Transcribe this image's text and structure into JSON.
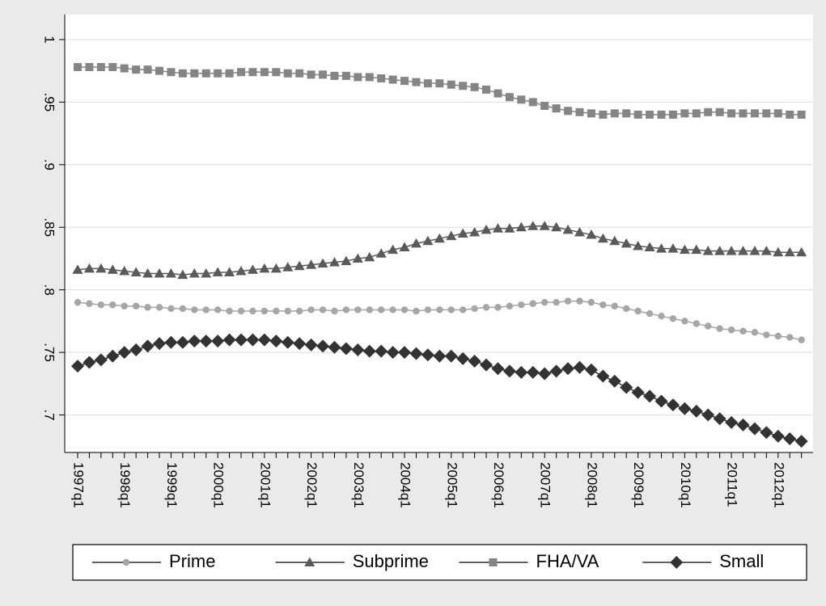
{
  "chart_data": {
    "type": "line",
    "categories": [
      "1997q1",
      null,
      null,
      null,
      "1998q1",
      null,
      null,
      null,
      "1999q1",
      null,
      null,
      null,
      "2000q1",
      null,
      null,
      null,
      "2001q1",
      null,
      null,
      null,
      "2002q1",
      null,
      null,
      null,
      "2003q1",
      null,
      null,
      null,
      "2004q1",
      null,
      null,
      null,
      "2005q1",
      null,
      null,
      null,
      "2006q1",
      null,
      null,
      null,
      "2007q1",
      null,
      null,
      null,
      "2008q1",
      null,
      null,
      null,
      "2009q1",
      null,
      null,
      null,
      "2010q1",
      null,
      null,
      null,
      "2011q1",
      null,
      null,
      null,
      "2012q1",
      null,
      null
    ],
    "ylim": [
      0.67,
      1.02
    ],
    "yticks": [
      {
        "value": 0.7,
        "label": ".7"
      },
      {
        "value": 0.75,
        "label": ".75"
      },
      {
        "value": 0.8,
        "label": ".8"
      },
      {
        "value": 0.85,
        "label": ".85"
      },
      {
        "value": 0.9,
        "label": ".9"
      },
      {
        "value": 0.95,
        "label": ".95"
      },
      1
    ],
    "grid": true,
    "series": [
      {
        "name": "Prime",
        "color": "#a6a6a6",
        "marker": "circle",
        "values": [
          0.79,
          0.789,
          0.788,
          0.788,
          0.787,
          0.787,
          0.786,
          0.786,
          0.785,
          0.785,
          0.784,
          0.784,
          0.784,
          0.783,
          0.783,
          0.783,
          0.783,
          0.783,
          0.783,
          0.783,
          0.784,
          0.784,
          0.783,
          0.784,
          0.784,
          0.784,
          0.784,
          0.784,
          0.784,
          0.783,
          0.784,
          0.784,
          0.784,
          0.784,
          0.785,
          0.786,
          0.786,
          0.787,
          0.788,
          0.789,
          0.79,
          0.79,
          0.791,
          0.791,
          0.79,
          0.788,
          0.787,
          0.785,
          0.783,
          0.781,
          0.779,
          0.777,
          0.775,
          0.773,
          0.771,
          0.769,
          0.768,
          0.767,
          0.766,
          0.764,
          0.763,
          0.762,
          0.76
        ]
      },
      {
        "name": "Subprime",
        "color": "#5a5a5a",
        "marker": "triangle",
        "values": [
          0.816,
          0.817,
          0.817,
          0.816,
          0.815,
          0.814,
          0.813,
          0.813,
          0.813,
          0.812,
          0.813,
          0.813,
          0.814,
          0.814,
          0.815,
          0.816,
          0.817,
          0.817,
          0.818,
          0.819,
          0.82,
          0.821,
          0.822,
          0.823,
          0.825,
          0.826,
          0.829,
          0.832,
          0.834,
          0.837,
          0.839,
          0.841,
          0.843,
          0.845,
          0.846,
          0.848,
          0.849,
          0.849,
          0.85,
          0.851,
          0.851,
          0.85,
          0.848,
          0.846,
          0.844,
          0.841,
          0.839,
          0.837,
          0.835,
          0.834,
          0.833,
          0.833,
          0.832,
          0.832,
          0.831,
          0.831,
          0.831,
          0.831,
          0.831,
          0.831,
          0.83,
          0.83,
          0.83
        ]
      },
      {
        "name": "FHA/VA",
        "color": "#858585",
        "marker": "square",
        "values": [
          0.978,
          0.978,
          0.978,
          0.978,
          0.977,
          0.976,
          0.976,
          0.975,
          0.974,
          0.973,
          0.973,
          0.973,
          0.973,
          0.973,
          0.974,
          0.974,
          0.974,
          0.974,
          0.973,
          0.973,
          0.972,
          0.972,
          0.971,
          0.971,
          0.97,
          0.97,
          0.969,
          0.968,
          0.967,
          0.966,
          0.965,
          0.965,
          0.964,
          0.963,
          0.962,
          0.96,
          0.957,
          0.954,
          0.952,
          0.95,
          0.947,
          0.945,
          0.943,
          0.942,
          0.941,
          0.94,
          0.941,
          0.941,
          0.94,
          0.94,
          0.94,
          0.94,
          0.941,
          0.941,
          0.942,
          0.942,
          0.941,
          0.941,
          0.941,
          0.941,
          0.941,
          0.94,
          0.94
        ]
      },
      {
        "name": "Small",
        "color": "#333333",
        "marker": "diamond",
        "values": [
          0.739,
          0.742,
          0.744,
          0.747,
          0.75,
          0.752,
          0.755,
          0.757,
          0.758,
          0.758,
          0.759,
          0.759,
          0.759,
          0.76,
          0.76,
          0.76,
          0.76,
          0.759,
          0.758,
          0.757,
          0.756,
          0.755,
          0.754,
          0.753,
          0.752,
          0.751,
          0.751,
          0.75,
          0.75,
          0.749,
          0.748,
          0.747,
          0.747,
          0.745,
          0.743,
          0.74,
          0.737,
          0.735,
          0.734,
          0.734,
          0.733,
          0.735,
          0.737,
          0.738,
          0.736,
          0.731,
          0.727,
          0.722,
          0.718,
          0.715,
          0.711,
          0.708,
          0.705,
          0.703,
          0.7,
          0.697,
          0.694,
          0.692,
          0.689,
          0.686,
          0.683,
          0.681,
          0.679
        ]
      }
    ]
  }
}
